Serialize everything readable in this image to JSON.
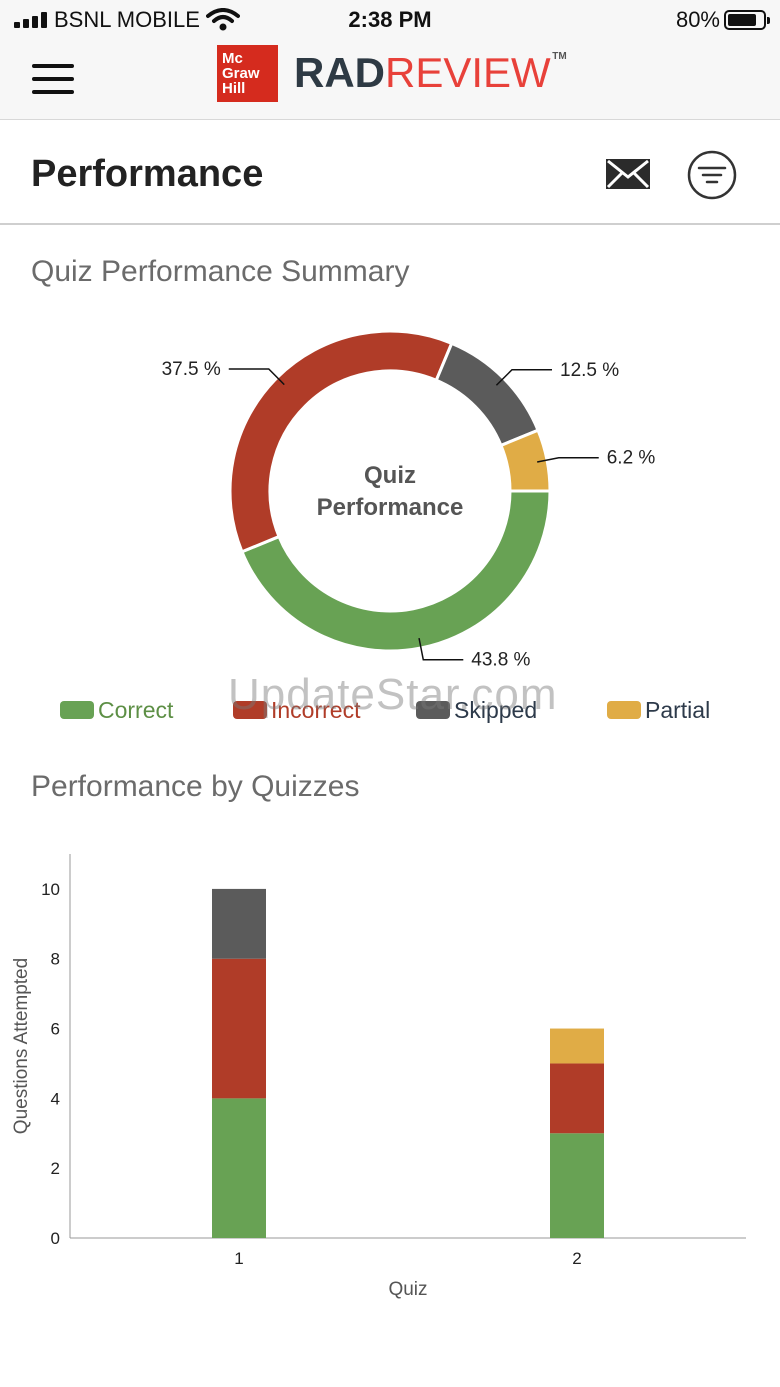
{
  "status_bar": {
    "carrier": "BSNL MOBILE",
    "time": "2:38 PM",
    "battery": "80%",
    "icons": [
      "signal-icon",
      "wifi-icon",
      "battery-icon"
    ]
  },
  "header": {
    "logo_lines": [
      "Mc",
      "Graw",
      "Hill"
    ],
    "brand_rad": "RAD",
    "brand_review": "REVIEW",
    "brand_tm": "TM",
    "icons": [
      "hamburger-menu-icon"
    ]
  },
  "page": {
    "title": "Performance",
    "icons": [
      "mail-icon",
      "filter-icon"
    ]
  },
  "summary": {
    "title": "Quiz Performance Summary",
    "center_line1": "Quiz",
    "center_line2": "Performance"
  },
  "legend": {
    "correct": "Correct",
    "incorrect": "Incorrect",
    "skipped": "Skipped",
    "partial": "Partial"
  },
  "watermark": "UpdateStar.com",
  "by_quizzes": {
    "title": "Performance by Quizzes"
  },
  "colors": {
    "correct": "#68a254",
    "incorrect": "#b03c28",
    "skipped": "#5b5b5b",
    "partial": "#e0ac46",
    "legend_correct_text": "#5d8f45",
    "legend_incorrect_text": "#b03c28",
    "legend_skipped_text": "#2d3a4a",
    "legend_partial_text": "#2d3a4a"
  },
  "chart_data": [
    {
      "type": "pie",
      "title": "Quiz Performance Summary",
      "center_text": "Quiz Performance",
      "slices": [
        {
          "name": "Correct",
          "value": 43.8,
          "label": "43.8 %"
        },
        {
          "name": "Incorrect",
          "value": 37.5,
          "label": "37.5 %"
        },
        {
          "name": "Skipped",
          "value": 12.5,
          "label": "12.5 %"
        },
        {
          "name": "Partial",
          "value": 6.2,
          "label": "6.2 %"
        }
      ],
      "legend": "bottom"
    },
    {
      "type": "bar",
      "stacked": true,
      "title": "Performance by Quizzes",
      "xlabel": "Quiz",
      "ylabel": "Questions Attempted",
      "categories": [
        "1",
        "2"
      ],
      "ylim": [
        0,
        11
      ],
      "yticks": [
        0,
        2,
        4,
        6,
        8,
        10
      ],
      "series": [
        {
          "name": "Correct",
          "values": [
            4,
            3
          ]
        },
        {
          "name": "Incorrect",
          "values": [
            4,
            2
          ]
        },
        {
          "name": "Skipped",
          "values": [
            2,
            0
          ]
        },
        {
          "name": "Partial",
          "values": [
            0,
            1
          ]
        }
      ]
    }
  ]
}
